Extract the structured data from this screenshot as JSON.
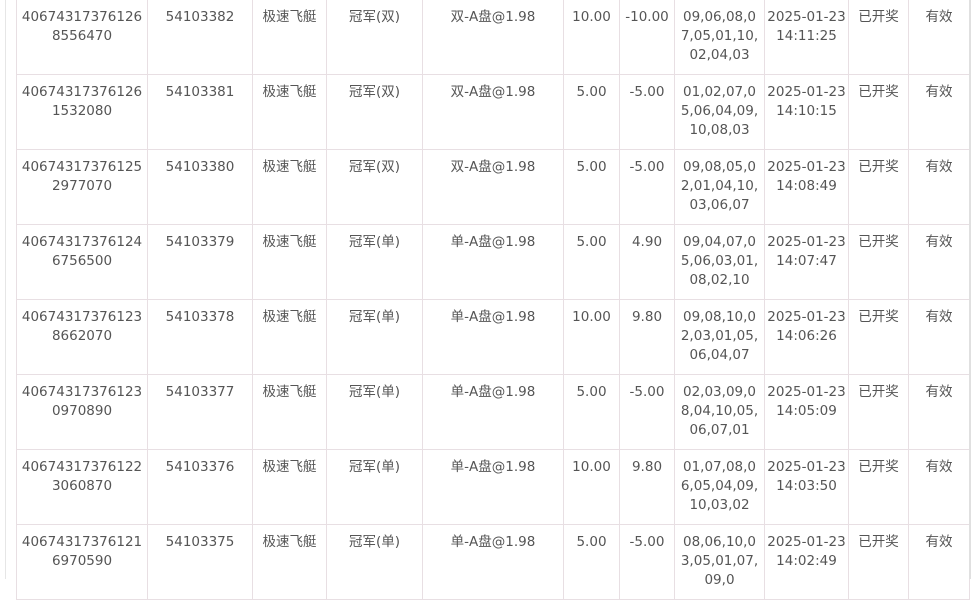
{
  "rows": [
    {
      "order": "406743173761268556470",
      "issue": "54103382",
      "game": "极速飞艇",
      "play": "冠军(双)",
      "bet": "双-A盘@1.98",
      "amount": "10.00",
      "win": "-10.00",
      "result": "09,06,08,07,05,01,10,02,04,03",
      "time": "2025-01-23 14:11:25",
      "status": "已开奖",
      "valid": "有效"
    },
    {
      "order": "406743173761261532080",
      "issue": "54103381",
      "game": "极速飞艇",
      "play": "冠军(双)",
      "bet": "双-A盘@1.98",
      "amount": "5.00",
      "win": "-5.00",
      "result": "01,02,07,05,06,04,09,10,08,03",
      "time": "2025-01-23 14:10:15",
      "status": "已开奖",
      "valid": "有效"
    },
    {
      "order": "406743173761252977070",
      "issue": "54103380",
      "game": "极速飞艇",
      "play": "冠军(双)",
      "bet": "双-A盘@1.98",
      "amount": "5.00",
      "win": "-5.00",
      "result": "09,08,05,02,01,04,10,03,06,07",
      "time": "2025-01-23 14:08:49",
      "status": "已开奖",
      "valid": "有效"
    },
    {
      "order": "406743173761246756500",
      "issue": "54103379",
      "game": "极速飞艇",
      "play": "冠军(单)",
      "bet": "单-A盘@1.98",
      "amount": "5.00",
      "win": "4.90",
      "result": "09,04,07,05,06,03,01,08,02,10",
      "time": "2025-01-23 14:07:47",
      "status": "已开奖",
      "valid": "有效"
    },
    {
      "order": "406743173761238662070",
      "issue": "54103378",
      "game": "极速飞艇",
      "play": "冠军(单)",
      "bet": "单-A盘@1.98",
      "amount": "10.00",
      "win": "9.80",
      "result": "09,08,10,02,03,01,05,06,04,07",
      "time": "2025-01-23 14:06:26",
      "status": "已开奖",
      "valid": "有效"
    },
    {
      "order": "406743173761230970890",
      "issue": "54103377",
      "game": "极速飞艇",
      "play": "冠军(单)",
      "bet": "单-A盘@1.98",
      "amount": "5.00",
      "win": "-5.00",
      "result": "02,03,09,08,04,10,05,06,07,01",
      "time": "2025-01-23 14:05:09",
      "status": "已开奖",
      "valid": "有效"
    },
    {
      "order": "406743173761223060870",
      "issue": "54103376",
      "game": "极速飞艇",
      "play": "冠军(单)",
      "bet": "单-A盘@1.98",
      "amount": "10.00",
      "win": "9.80",
      "result": "01,07,08,06,05,04,09,10,03,02",
      "time": "2025-01-23 14:03:50",
      "status": "已开奖",
      "valid": "有效"
    },
    {
      "order": "406743173761216970590",
      "issue": "54103375",
      "game": "极速飞艇",
      "play": "冠军(单)",
      "bet": "单-A盘@1.98",
      "amount": "5.00",
      "win": "-5.00",
      "result": "08,06,10,03,05,01,07,09,0",
      "time": "2025-01-23 14:02:49",
      "status": "已开奖",
      "valid": "有效"
    }
  ]
}
